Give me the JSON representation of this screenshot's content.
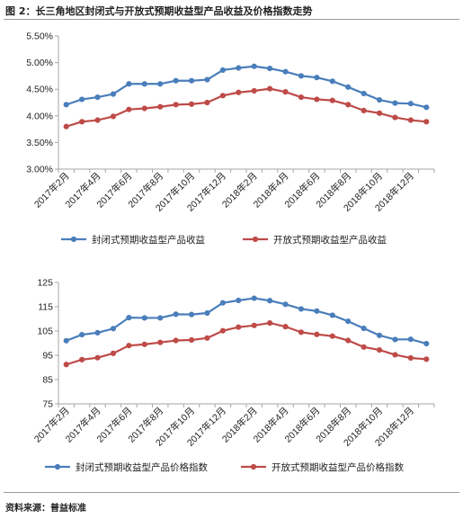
{
  "figure_title": "图 2：长三角地区封闭式与开放式预期收益型产品收益及价格指数走势",
  "source": "资料来源：普益标准",
  "colors": {
    "closed": "#4a7ebb",
    "open": "#be4b48",
    "axis": "#a6a6a6"
  },
  "chart_data": [
    {
      "type": "line",
      "categories": [
        "2017年2月",
        "2017年3月",
        "2017年4月",
        "2017年5月",
        "2017年6月",
        "2017年7月",
        "2017年8月",
        "2017年9月",
        "2017年10月",
        "2017年11月",
        "2017年12月",
        "2018年1月",
        "2018年2月",
        "2018年3月",
        "2018年4月",
        "2018年5月",
        "2018年6月",
        "2018年7月",
        "2018年8月",
        "2018年9月",
        "2018年10月",
        "2018年11月",
        "2018年12月",
        "2019年1月"
      ],
      "x_tick_labels": [
        "2017年2月",
        "",
        "2017年4月",
        "",
        "2017年6月",
        "",
        "2017年8月",
        "",
        "2017年10月",
        "",
        "2017年12月",
        "",
        "2018年2月",
        "",
        "2018年4月",
        "",
        "2018年6月",
        "",
        "2018年8月",
        "",
        "2018年10月",
        "",
        "2018年12月",
        ""
      ],
      "y_tick_labels": [
        "3.00%",
        "3.50%",
        "4.00%",
        "4.50%",
        "5.00%",
        "5.50%"
      ],
      "ylim": [
        3.0,
        5.5
      ],
      "series": [
        {
          "name": "封闭式预期收益型产品收益",
          "color": "#4a7ebb",
          "values": [
            4.21,
            4.31,
            4.35,
            4.41,
            4.6,
            4.6,
            4.6,
            4.66,
            4.66,
            4.68,
            4.86,
            4.9,
            4.93,
            4.89,
            4.83,
            4.75,
            4.72,
            4.65,
            4.54,
            4.42,
            4.3,
            4.24,
            4.23,
            4.16
          ]
        },
        {
          "name": "开放式预期收益型产品收益",
          "color": "#be4b48",
          "values": [
            3.8,
            3.89,
            3.92,
            3.99,
            4.12,
            4.14,
            4.17,
            4.21,
            4.22,
            4.25,
            4.38,
            4.44,
            4.47,
            4.51,
            4.45,
            4.35,
            4.31,
            4.29,
            4.21,
            4.1,
            4.05,
            3.97,
            3.92,
            3.89
          ]
        }
      ],
      "legend_position": "bottom",
      "grid": false
    },
    {
      "type": "line",
      "categories": [
        "2017年2月",
        "2017年3月",
        "2017年4月",
        "2017年5月",
        "2017年6月",
        "2017年7月",
        "2017年8月",
        "2017年9月",
        "2017年10月",
        "2017年11月",
        "2017年12月",
        "2018年1月",
        "2018年2月",
        "2018年3月",
        "2018年4月",
        "2018年5月",
        "2018年6月",
        "2018年7月",
        "2018年8月",
        "2018年9月",
        "2018年10月",
        "2018年11月",
        "2018年12月",
        "2019年1月"
      ],
      "x_tick_labels": [
        "2017年2月",
        "",
        "2017年4月",
        "",
        "2017年6月",
        "",
        "2017年8月",
        "",
        "2017年10月",
        "",
        "2017年12月",
        "",
        "2018年2月",
        "",
        "2018年4月",
        "",
        "2018年6月",
        "",
        "2018年8月",
        "",
        "2018年10月",
        "",
        "2018年12月",
        ""
      ],
      "y_tick_labels": [
        "75",
        "85",
        "95",
        "105",
        "115",
        "125"
      ],
      "ylim": [
        75,
        125
      ],
      "series": [
        {
          "name": "封闭式预期收益型产品价格指数",
          "color": "#4a7ebb",
          "values": [
            101.0,
            103.5,
            104.3,
            106.0,
            110.5,
            110.4,
            110.4,
            111.9,
            111.8,
            112.4,
            116.6,
            117.6,
            118.5,
            117.5,
            116.0,
            114.1,
            113.2,
            111.5,
            109.0,
            106.1,
            103.2,
            101.5,
            101.6,
            99.8
          ]
        },
        {
          "name": "开放式预期收益型产品价格指数",
          "color": "#be4b48",
          "values": [
            91.2,
            93.2,
            94.0,
            95.8,
            99.0,
            99.5,
            100.3,
            101.1,
            101.3,
            102.1,
            105.1,
            106.6,
            107.3,
            108.3,
            106.8,
            104.5,
            103.6,
            102.9,
            101.1,
            98.4,
            97.2,
            95.2,
            93.9,
            93.4
          ]
        }
      ],
      "legend_position": "bottom",
      "grid": false
    }
  ]
}
